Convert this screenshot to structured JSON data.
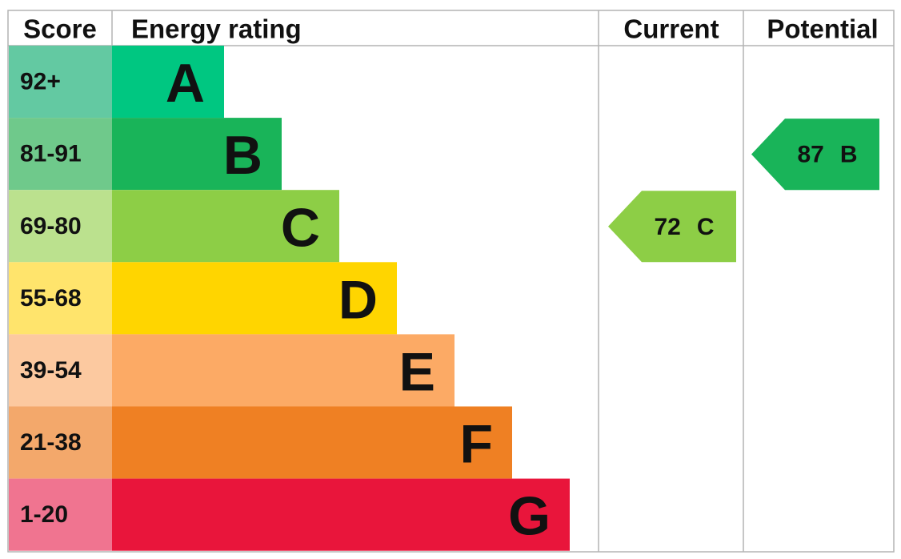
{
  "header": {
    "score": "Score",
    "rating": "Energy rating",
    "current": "Current",
    "potential": "Potential"
  },
  "bands": [
    {
      "score": "92+",
      "letter": "A",
      "color": "#00c781",
      "score_color": "#63c9a2"
    },
    {
      "score": "81-91",
      "letter": "B",
      "color": "#19b459",
      "score_color": "#6fc98b"
    },
    {
      "score": "69-80",
      "letter": "C",
      "color": "#8dce46",
      "score_color": "#bbe18e"
    },
    {
      "score": "55-68",
      "letter": "D",
      "color": "#ffd500",
      "score_color": "#ffe46c"
    },
    {
      "score": "39-54",
      "letter": "E",
      "color": "#fcaa65",
      "score_color": "#fcc9a0"
    },
    {
      "score": "21-38",
      "letter": "F",
      "color": "#ef8023",
      "score_color": "#f3a86b"
    },
    {
      "score": "1-20",
      "letter": "G",
      "color": "#e9153b",
      "score_color": "#f07490"
    }
  ],
  "current": {
    "value": 72,
    "letter": "C"
  },
  "potential": {
    "value": 87,
    "letter": "B"
  }
}
